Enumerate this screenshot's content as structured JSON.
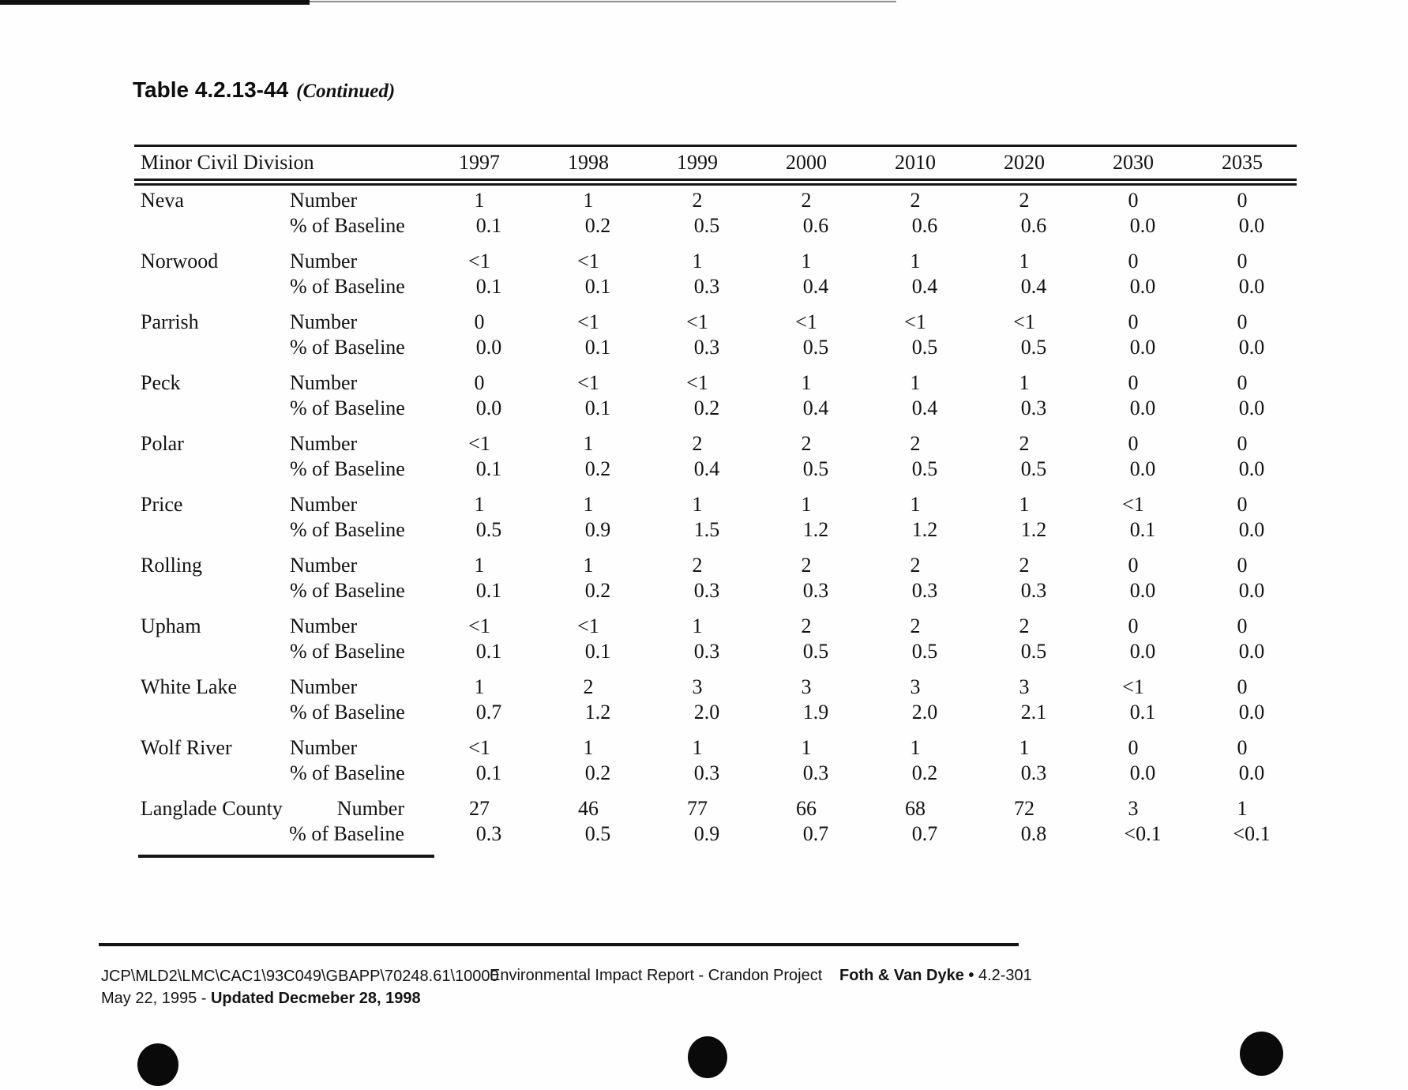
{
  "page": {
    "title": "Table 4.2.13-44",
    "title_suffix": "(Continued)"
  },
  "table": {
    "header": {
      "division_label": "Minor Civil Division",
      "years": [
        "1997",
        "1998",
        "1999",
        "2000",
        "2010",
        "2020",
        "2030",
        "2035"
      ]
    },
    "metric_labels": {
      "number": "Number",
      "baseline": "% of Baseline"
    },
    "rows": [
      {
        "name": "Neva",
        "number": [
          "1",
          "1",
          "2",
          "2",
          "2",
          "2",
          "0",
          "0"
        ],
        "baseline": [
          "0.1",
          "0.2",
          "0.5",
          "0.6",
          "0.6",
          "0.6",
          "0.0",
          "0.0"
        ]
      },
      {
        "name": "Norwood",
        "number": [
          "<1",
          "<1",
          "1",
          "1",
          "1",
          "1",
          "0",
          "0"
        ],
        "baseline": [
          "0.1",
          "0.1",
          "0.3",
          "0.4",
          "0.4",
          "0.4",
          "0.0",
          "0.0"
        ]
      },
      {
        "name": "Parrish",
        "number": [
          "0",
          "<1",
          "<1",
          "<1",
          "<1",
          "<1",
          "0",
          "0"
        ],
        "baseline": [
          "0.0",
          "0.1",
          "0.3",
          "0.5",
          "0.5",
          "0.5",
          "0.0",
          "0.0"
        ]
      },
      {
        "name": "Peck",
        "number": [
          "0",
          "<1",
          "<1",
          "1",
          "1",
          "1",
          "0",
          "0"
        ],
        "baseline": [
          "0.0",
          "0.1",
          "0.2",
          "0.4",
          "0.4",
          "0.3",
          "0.0",
          "0.0"
        ]
      },
      {
        "name": "Polar",
        "number": [
          "<1",
          "1",
          "2",
          "2",
          "2",
          "2",
          "0",
          "0"
        ],
        "baseline": [
          "0.1",
          "0.2",
          "0.4",
          "0.5",
          "0.5",
          "0.5",
          "0.0",
          "0.0"
        ]
      },
      {
        "name": "Price",
        "number": [
          "1",
          "1",
          "1",
          "1",
          "1",
          "1",
          "<1",
          "0"
        ],
        "baseline": [
          "0.5",
          "0.9",
          "1.5",
          "1.2",
          "1.2",
          "1.2",
          "0.1",
          "0.0"
        ]
      },
      {
        "name": "Rolling",
        "number": [
          "1",
          "1",
          "2",
          "2",
          "2",
          "2",
          "0",
          "0"
        ],
        "baseline": [
          "0.1",
          "0.2",
          "0.3",
          "0.3",
          "0.3",
          "0.3",
          "0.0",
          "0.0"
        ]
      },
      {
        "name": "Upham",
        "number": [
          "<1",
          "<1",
          "1",
          "2",
          "2",
          "2",
          "0",
          "0"
        ],
        "baseline": [
          "0.1",
          "0.1",
          "0.3",
          "0.5",
          "0.5",
          "0.5",
          "0.0",
          "0.0"
        ]
      },
      {
        "name": "White Lake",
        "number": [
          "1",
          "2",
          "3",
          "3",
          "3",
          "3",
          "<1",
          "0"
        ],
        "baseline": [
          "0.7",
          "1.2",
          "2.0",
          "1.9",
          "2.0",
          "2.1",
          "0.1",
          "0.0"
        ]
      },
      {
        "name": "Wolf River",
        "number": [
          "<1",
          "1",
          "1",
          "1",
          "1",
          "1",
          "0",
          "0"
        ],
        "baseline": [
          "0.1",
          "0.2",
          "0.3",
          "0.3",
          "0.2",
          "0.3",
          "0.0",
          "0.0"
        ]
      },
      {
        "name": "Langlade County",
        "number": [
          "27",
          "46",
          "77",
          "66",
          "68",
          "72",
          "3",
          "1"
        ],
        "baseline": [
          "0.3",
          "0.5",
          "0.9",
          "0.7",
          "0.7",
          "0.8",
          "<0.1",
          "<0.1"
        ],
        "is_total": true
      }
    ]
  },
  "footer": {
    "file_path": "JCP\\MLD2\\LMC\\CAC1\\93C049\\GBAPP\\70248.61\\10000",
    "date_prefix": "May 22, 1995 - ",
    "date_updated": "Updated Decmeber 28, 1998",
    "center_text": "Environmental Impact Report - Crandon Project",
    "firm_name": "Foth & Van Dyke",
    "separator": "•",
    "page_number": "4.2-301"
  }
}
